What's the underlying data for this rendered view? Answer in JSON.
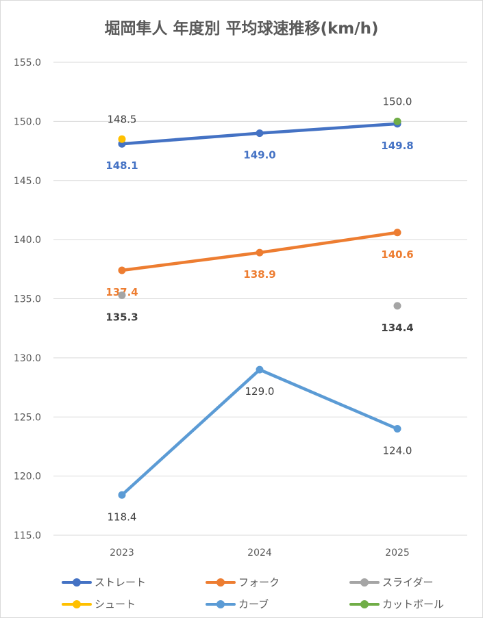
{
  "chart_data": {
    "type": "line",
    "title": "堀岡隼人 年度別 平均球速推移(km/h)",
    "xlabel": "",
    "ylabel": "",
    "categories": [
      "2023",
      "2024",
      "2025"
    ],
    "ylim": [
      115,
      155
    ],
    "yticks": [
      "115.0",
      "120.0",
      "125.0",
      "130.0",
      "135.0",
      "140.0",
      "145.0",
      "150.0",
      "155.0"
    ],
    "grid": true,
    "legend_position": "bottom",
    "series": [
      {
        "name": "ストレート",
        "color": "#4472c4",
        "values": [
          148.1,
          149.0,
          149.8
        ],
        "labels": [
          "148.1",
          "149.0",
          "149.8"
        ],
        "label_pos": "below",
        "label_color": "#4472c4",
        "bold": true,
        "line": true
      },
      {
        "name": "フォーク",
        "color": "#ed7d31",
        "values": [
          137.4,
          138.9,
          140.6
        ],
        "labels": [
          "137.4",
          "138.9",
          "140.6"
        ],
        "label_pos": "below",
        "label_color": "#ed7d31",
        "bold": true,
        "line": true
      },
      {
        "name": "スライダー",
        "color": "#a5a5a5",
        "values": [
          135.3,
          null,
          134.4
        ],
        "labels": [
          "135.3",
          "",
          "134.4"
        ],
        "label_pos": "below",
        "label_color": "#404040",
        "bold": true,
        "line": false
      },
      {
        "name": "シュート",
        "color": "#ffc000",
        "values": [
          148.5,
          null,
          null
        ],
        "labels": [
          "148.5",
          "",
          ""
        ],
        "label_pos": "above",
        "label_color": "#404040",
        "bold": false,
        "line": false
      },
      {
        "name": "カーブ",
        "color": "#5b9bd5",
        "values": [
          118.4,
          129.0,
          124.0
        ],
        "labels": [
          "118.4",
          "129.0",
          "124.0"
        ],
        "label_pos": "below",
        "label_color": "#404040",
        "bold": false,
        "line": true
      },
      {
        "name": "カットボール",
        "color": "#70ad47",
        "values": [
          null,
          null,
          150.0
        ],
        "labels": [
          "",
          "",
          "150.0"
        ],
        "label_pos": "above",
        "label_color": "#404040",
        "bold": false,
        "line": false
      }
    ]
  }
}
